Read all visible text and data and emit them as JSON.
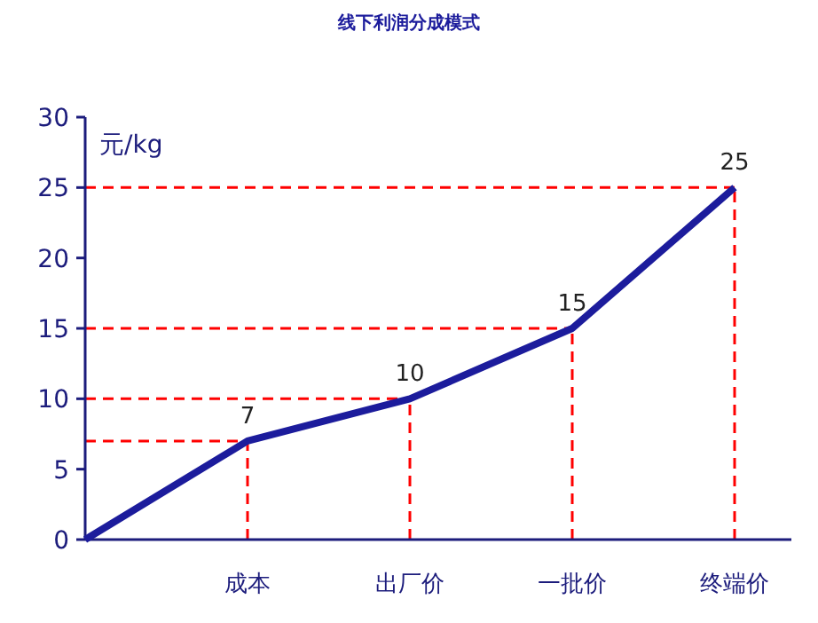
{
  "chart_data": {
    "type": "line",
    "title": "线下利润分成模式",
    "ylabel": "元/kg",
    "categories": [
      null,
      "成本",
      "出厂价",
      "一批价",
      "终端价"
    ],
    "series": [
      {
        "color": "#1c1c9c",
        "values": [
          0,
          7,
          10,
          15,
          25
        ],
        "value_labels": [
          null,
          "7",
          "10",
          "15",
          "25"
        ]
      }
    ],
    "ylim": [
      0,
      30
    ],
    "yticks": [
      0,
      5,
      10,
      15,
      20,
      25,
      30
    ],
    "grid": false,
    "marker": "none",
    "line_style": "solid",
    "ref_lines": [
      {
        "axis": "y",
        "value": 7,
        "color": "#ff0000",
        "line_style": "dashed"
      },
      {
        "axis": "y",
        "value": 10,
        "color": "#ff0000",
        "line_style": "dashed"
      },
      {
        "axis": "y",
        "value": 15,
        "color": "#ff0000",
        "line_style": "dashed"
      },
      {
        "axis": "y",
        "value": 25,
        "color": "#ff0000",
        "line_style": "dashed"
      },
      {
        "axis": "x",
        "value": "成本",
        "color": "#ff0000",
        "line_style": "dashed"
      },
      {
        "axis": "x",
        "value": "出厂价",
        "color": "#ff0000",
        "line_style": "dashed"
      },
      {
        "axis": "x",
        "value": "一批价",
        "color": "#ff0000",
        "line_style": "dashed"
      },
      {
        "axis": "x",
        "value": "终端价",
        "color": "#ff0000",
        "line_style": "dashed"
      }
    ]
  }
}
